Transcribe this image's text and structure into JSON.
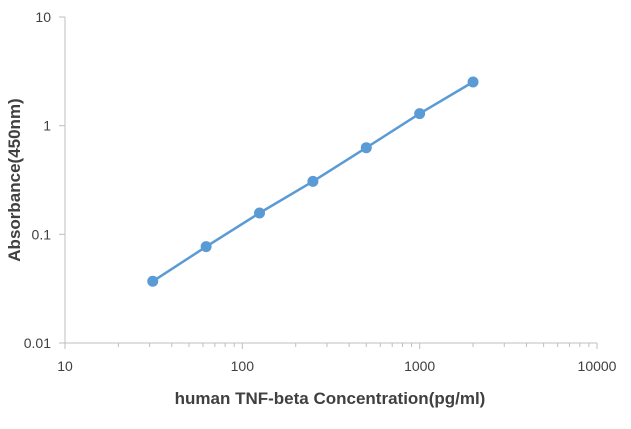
{
  "chart_data": {
    "type": "line",
    "xlabel": "human TNF-beta Concentration(pg/ml)",
    "ylabel": "Absorbance(450nm)",
    "x_scale": "log",
    "y_scale": "log",
    "xlim": [
      10,
      10000
    ],
    "ylim": [
      0.01,
      10
    ],
    "x_ticks": [
      10,
      100,
      1000,
      10000
    ],
    "x_tick_labels": [
      "10",
      "100",
      "1000",
      "10000"
    ],
    "y_ticks": [
      0.01,
      0.1,
      1,
      10
    ],
    "y_tick_labels": [
      "0.01",
      "0.1",
      "1",
      "10"
    ],
    "grid": false,
    "series": [
      {
        "x": [
          31.25,
          62.5,
          125,
          250,
          500,
          1000,
          2000
        ],
        "y": [
          0.037,
          0.077,
          0.157,
          0.307,
          0.627,
          1.29,
          2.52
        ]
      }
    ],
    "colors": {
      "series": "#5B9BD5",
      "axis": "#BFBFBF",
      "text": "#404040"
    }
  }
}
